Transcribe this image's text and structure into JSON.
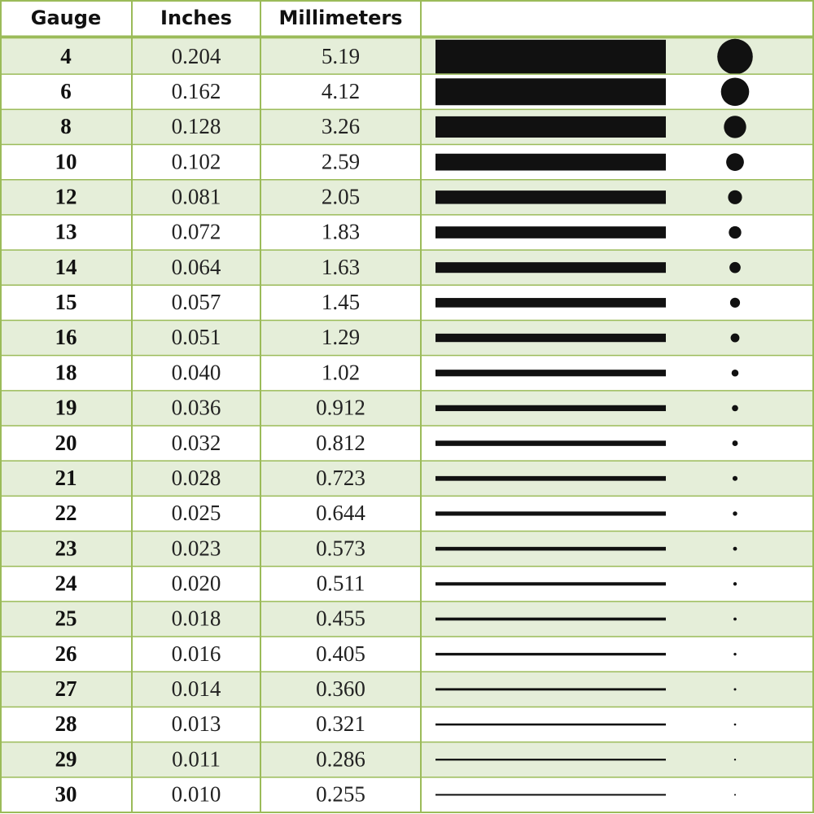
{
  "table": {
    "header": [
      "Gauge",
      "Inches",
      "Millimeters"
    ],
    "rows": [
      [
        "4",
        "0.204",
        "5.19"
      ],
      [
        "6",
        "0.162",
        "4.12"
      ],
      [
        "8",
        "0.128",
        "3.26"
      ],
      [
        "10",
        "0.102",
        "2.59"
      ],
      [
        "12",
        "0.081",
        "2.05"
      ],
      [
        "13",
        "0.072",
        "1.83"
      ],
      [
        "14",
        "0.064",
        "1.63"
      ],
      [
        "15",
        "0.057",
        "1.45"
      ],
      [
        "16",
        "0.051",
        "1.29"
      ],
      [
        "18",
        "0.040",
        "1.02"
      ],
      [
        "19",
        "0.036",
        "0.912"
      ],
      [
        "20",
        "0.032",
        "0.812"
      ],
      [
        "21",
        "0.028",
        "0.723"
      ],
      [
        "22",
        "0.025",
        "0.644"
      ],
      [
        "23",
        "0.023",
        "0.573"
      ],
      [
        "24",
        "0.020",
        "0.511"
      ],
      [
        "25",
        "0.018",
        "0.455"
      ],
      [
        "26",
        "0.016",
        "0.405"
      ],
      [
        "27",
        "0.014",
        "0.360"
      ],
      [
        "28",
        "0.013",
        "0.321"
      ],
      [
        "29",
        "0.011",
        "0.286"
      ],
      [
        "30",
        "0.010",
        "0.255"
      ]
    ]
  }
}
